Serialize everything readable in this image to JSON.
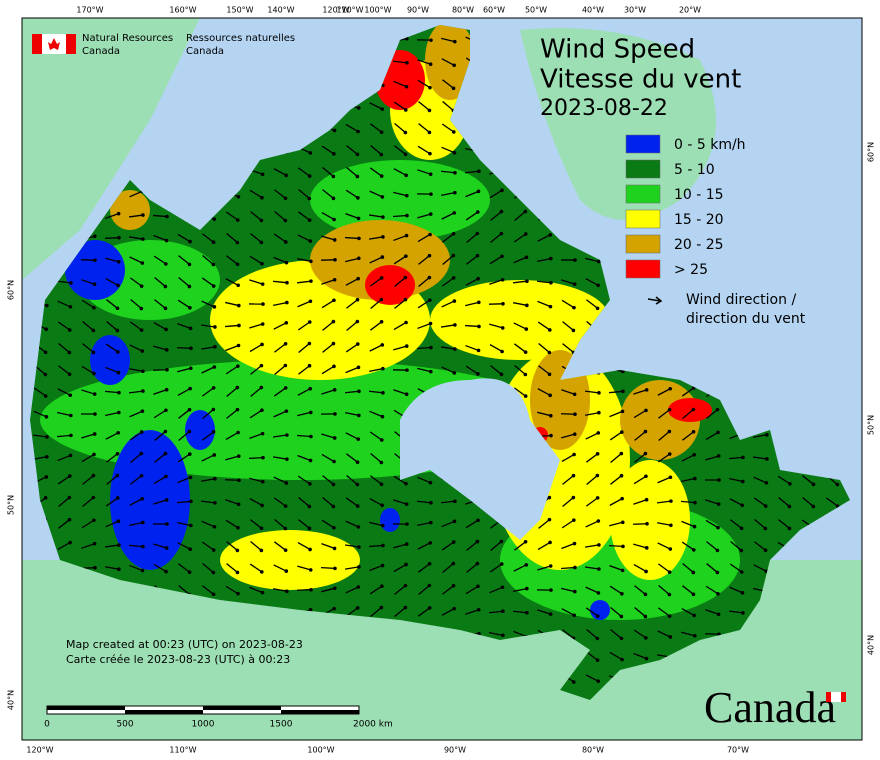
{
  "credits": {
    "en": [
      "Natural Resources",
      "Canada"
    ],
    "fr": [
      "Ressources naturelles",
      "Canada"
    ]
  },
  "title": {
    "line1": "Wind Speed",
    "line2": "Vitesse du vent",
    "date": "2023-08-22"
  },
  "legend": {
    "items": [
      {
        "label": "0 - 5 km/h",
        "color": "#0022ee"
      },
      {
        "label": "5 - 10",
        "color": "#0a7a14"
      },
      {
        "label": "10 - 15",
        "color": "#1ed21e"
      },
      {
        "label": "15 - 20",
        "color": "#ffff00"
      },
      {
        "label": "20 - 25",
        "color": "#d4a300"
      },
      {
        "label": "> 25",
        "color": "#ff0000"
      }
    ],
    "arrow": [
      "Wind direction /",
      "direction du vent"
    ]
  },
  "graticule": {
    "top": [
      "170°W",
      "160°W",
      "150°W",
      "140°W",
      "120°W",
      "110°W",
      "100°W",
      "90°W",
      "80°W",
      "60°W",
      "50°W",
      "40°W",
      "30°W",
      "20°W"
    ],
    "bottom": [
      "120°W",
      "110°W",
      "100°W",
      "90°W",
      "80°W",
      "70°W"
    ],
    "left": [
      "60°N",
      "50°N",
      "40°N"
    ],
    "right": [
      "60°N",
      "50°N",
      "40°N"
    ]
  },
  "notes": [
    "Map created at 00:23 (UTC) on 2023-08-23",
    "Carte créée le 2023-08-23 (UTC) à 00:23"
  ],
  "scale": [
    "0",
    "500",
    "1000",
    "1500",
    "2000  km"
  ],
  "wordmark": "Canada"
}
